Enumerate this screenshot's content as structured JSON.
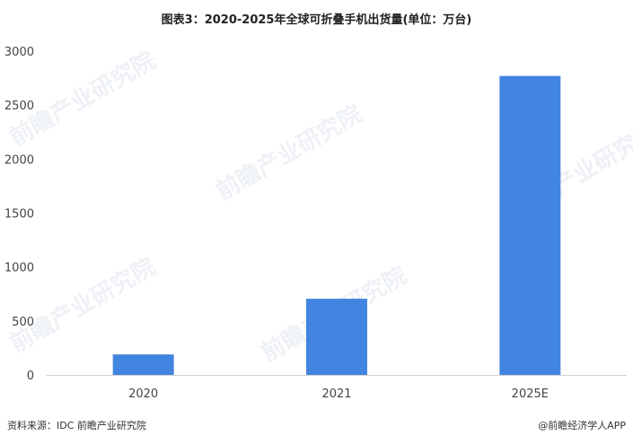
{
  "title": "图表3：2020-2025年全球可折叠手机出货量(单位：万台)",
  "chart_data": {
    "type": "bar",
    "title": "图表3：2020-2025年全球可折叠手机出货量(单位：万台)",
    "categories": [
      "2020",
      "2021",
      "2025E"
    ],
    "values": [
      190,
      706,
      2770
    ],
    "ylim": [
      0,
      3000
    ],
    "yticks": [
      0,
      500,
      1000,
      1500,
      2000,
      2500,
      3000
    ],
    "xlabel": "",
    "ylabel": "",
    "grid": false,
    "bar_color": "#4285e0"
  },
  "footer": {
    "source": "资料来源：IDC 前瞻产业研究院",
    "brand": "@前瞻经济学人APP"
  },
  "watermark": "前瞻产业研究院"
}
